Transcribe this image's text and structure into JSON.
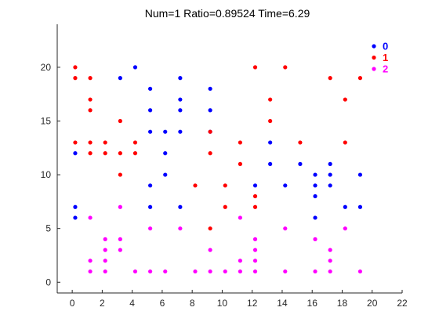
{
  "chart_data": {
    "type": "scatter",
    "title": "Num=1 Ratio=0.89524 Time=6.29",
    "xlabel": "",
    "ylabel": "",
    "xlim": [
      -1,
      22
    ],
    "ylim": [
      -1,
      24
    ],
    "xticks": [
      0,
      2,
      4,
      6,
      8,
      10,
      12,
      14,
      16,
      18,
      20,
      22
    ],
    "yticks": [
      0,
      5,
      10,
      15,
      20
    ],
    "grid": false,
    "legend_position": "top-right",
    "series": [
      {
        "name": "0",
        "color": "#0000ff",
        "points": [
          [
            0.2,
            6
          ],
          [
            0.2,
            7
          ],
          [
            0.2,
            12
          ],
          [
            3.2,
            19
          ],
          [
            4.2,
            20
          ],
          [
            5.2,
            18
          ],
          [
            5.2,
            16
          ],
          [
            5.2,
            14
          ],
          [
            5.2,
            9
          ],
          [
            5.2,
            7
          ],
          [
            6.2,
            14
          ],
          [
            6.2,
            12
          ],
          [
            6.2,
            10
          ],
          [
            7.2,
            19
          ],
          [
            7.2,
            17
          ],
          [
            7.2,
            16
          ],
          [
            7.2,
            14
          ],
          [
            7.2,
            7
          ],
          [
            9.2,
            18
          ],
          [
            9.2,
            16
          ],
          [
            9.2,
            14
          ],
          [
            12.2,
            9
          ],
          [
            13.2,
            13
          ],
          [
            13.2,
            11
          ],
          [
            14.2,
            9
          ],
          [
            15.2,
            11
          ],
          [
            16.2,
            10
          ],
          [
            16.2,
            9
          ],
          [
            16.2,
            8
          ],
          [
            16.2,
            6
          ],
          [
            17.2,
            11
          ],
          [
            17.2,
            10
          ],
          [
            17.2,
            9
          ],
          [
            18.2,
            7
          ],
          [
            19.2,
            10
          ],
          [
            19.2,
            7
          ]
        ]
      },
      {
        "name": "1",
        "color": "#ff0000",
        "points": [
          [
            0.2,
            20
          ],
          [
            0.2,
            19
          ],
          [
            0.2,
            13
          ],
          [
            1.2,
            19
          ],
          [
            1.2,
            17
          ],
          [
            1.2,
            16
          ],
          [
            1.2,
            13
          ],
          [
            1.2,
            12
          ],
          [
            2.2,
            13
          ],
          [
            2.2,
            12
          ],
          [
            3.2,
            15
          ],
          [
            3.2,
            12
          ],
          [
            3.2,
            10
          ],
          [
            4.2,
            13
          ],
          [
            4.2,
            12
          ],
          [
            8.2,
            9
          ],
          [
            9.2,
            14
          ],
          [
            9.2,
            12
          ],
          [
            9.2,
            5
          ],
          [
            10.2,
            9
          ],
          [
            10.2,
            7
          ],
          [
            11.2,
            13
          ],
          [
            11.2,
            11
          ],
          [
            12.2,
            20
          ],
          [
            12.2,
            8
          ],
          [
            12.2,
            7
          ],
          [
            13.2,
            17
          ],
          [
            13.2,
            15
          ],
          [
            14.2,
            20
          ],
          [
            15.2,
            13
          ],
          [
            17.2,
            19
          ],
          [
            18.2,
            17
          ],
          [
            18.2,
            13
          ],
          [
            19.2,
            19
          ]
        ]
      },
      {
        "name": "2",
        "color": "#ff00ff",
        "points": [
          [
            1.2,
            6
          ],
          [
            1.2,
            2
          ],
          [
            1.2,
            1
          ],
          [
            2.2,
            4
          ],
          [
            2.2,
            3
          ],
          [
            2.2,
            2
          ],
          [
            2.2,
            1
          ],
          [
            3.2,
            7
          ],
          [
            3.2,
            4
          ],
          [
            3.2,
            3
          ],
          [
            4.2,
            1
          ],
          [
            5.2,
            5
          ],
          [
            5.2,
            1
          ],
          [
            6.2,
            1
          ],
          [
            7.2,
            5
          ],
          [
            8.2,
            1
          ],
          [
            9.2,
            3
          ],
          [
            9.2,
            1
          ],
          [
            10.2,
            1
          ],
          [
            11.2,
            6
          ],
          [
            11.2,
            2
          ],
          [
            11.2,
            1
          ],
          [
            12.2,
            4
          ],
          [
            12.2,
            3
          ],
          [
            12.2,
            2
          ],
          [
            12.2,
            1
          ],
          [
            14.2,
            5
          ],
          [
            14.2,
            1
          ],
          [
            16.2,
            4
          ],
          [
            16.2,
            1
          ],
          [
            17.2,
            3
          ],
          [
            17.2,
            2
          ],
          [
            17.2,
            1
          ],
          [
            18.2,
            5
          ],
          [
            19.2,
            1
          ]
        ]
      }
    ]
  }
}
